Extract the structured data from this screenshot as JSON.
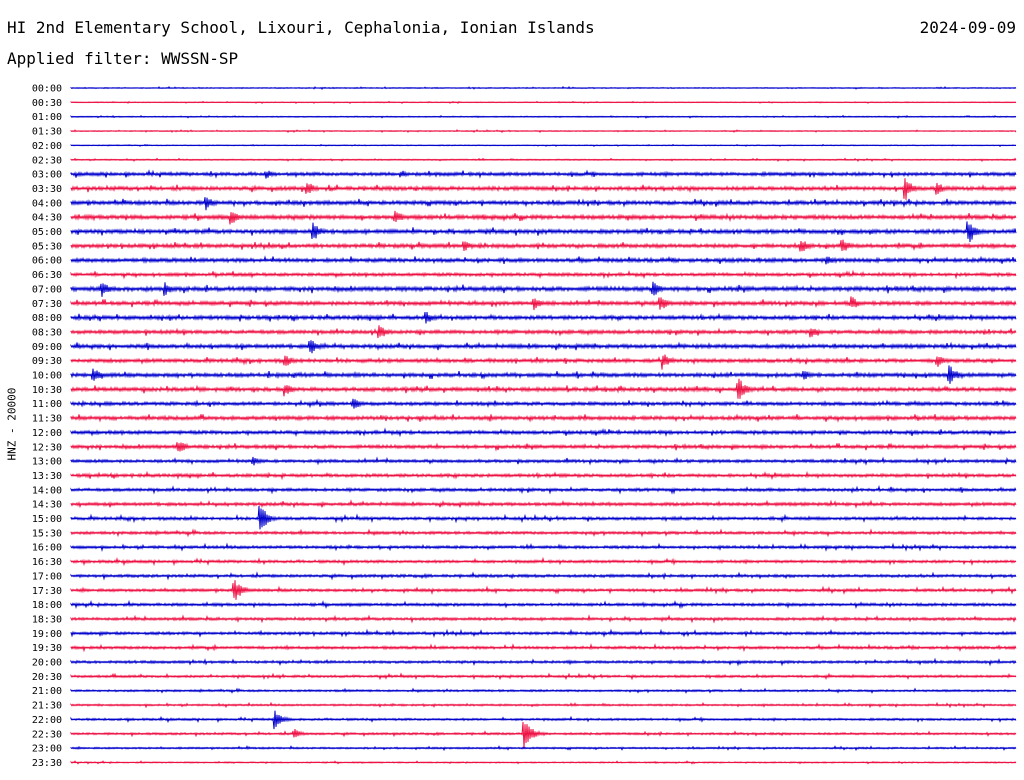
{
  "header": {
    "station": "HI 2nd Elementary School, Lixouri, Cephalonia, Ionian Islands",
    "date": "2024-09-09",
    "filter": "Applied filter: WWSSN-SP"
  },
  "colors": {
    "odd_trace": "#0000cc",
    "even_trace": "#ee1144"
  },
  "chart_data": {
    "type": "line",
    "title": "HI 2nd Elementary School, Lixouri, Cephalonia, Ionian Islands",
    "subtitle": "Applied filter: WWSSN-SP",
    "ylabel": "HNZ - 20000",
    "grid": false,
    "rows": [
      "00:00",
      "00:30",
      "01:00",
      "01:30",
      "02:00",
      "02:30",
      "03:00",
      "03:30",
      "04:00",
      "04:30",
      "05:00",
      "05:30",
      "06:00",
      "06:30",
      "07:00",
      "07:30",
      "08:00",
      "08:30",
      "09:00",
      "09:30",
      "10:00",
      "10:30",
      "11:00",
      "11:30",
      "12:00",
      "12:30",
      "13:00",
      "13:30",
      "14:00",
      "14:30",
      "15:00",
      "15:30",
      "16:00",
      "16:30",
      "17:00",
      "17:30",
      "18:00",
      "18:30",
      "19:00",
      "19:30",
      "20:00",
      "20:30",
      "21:00",
      "21:30",
      "22:00",
      "22:30",
      "23:00",
      "23:30"
    ],
    "trace_colors": [
      "#0000cc",
      "#ee1144"
    ],
    "noise_level": [
      0.5,
      0.4,
      0.5,
      0.5,
      0.4,
      0.6,
      1.6,
      1.8,
      1.8,
      1.9,
      1.9,
      1.8,
      1.8,
      1.5,
      2.0,
      1.8,
      1.8,
      1.7,
      1.8,
      1.7,
      1.8,
      1.8,
      1.6,
      1.8,
      1.6,
      1.6,
      1.4,
      1.5,
      1.4,
      1.5,
      1.4,
      1.3,
      1.3,
      1.3,
      1.3,
      1.3,
      1.3,
      1.3,
      1.3,
      1.3,
      1.2,
      1.1,
      0.9,
      0.9,
      1.0,
      1.0,
      0.8,
      0.6
    ],
    "events": [
      {
        "row": "03:00",
        "time_min": 6.2,
        "amp": 5
      },
      {
        "row": "03:00",
        "time_min": 10.5,
        "amp": 4
      },
      {
        "row": "03:30",
        "time_min": 7.5,
        "amp": 8
      },
      {
        "row": "03:30",
        "time_min": 26.5,
        "amp": 12
      },
      {
        "row": "03:30",
        "time_min": 27.5,
        "amp": 7
      },
      {
        "row": "04:00",
        "time_min": 4.3,
        "amp": 8
      },
      {
        "row": "04:30",
        "time_min": 5.1,
        "amp": 8
      },
      {
        "row": "04:30",
        "time_min": 10.3,
        "amp": 8
      },
      {
        "row": "05:00",
        "time_min": 7.7,
        "amp": 10
      },
      {
        "row": "05:00",
        "time_min": 28.5,
        "amp": 14
      },
      {
        "row": "05:30",
        "time_min": 12.5,
        "amp": 6
      },
      {
        "row": "05:30",
        "time_min": 23.2,
        "amp": 7
      },
      {
        "row": "05:30",
        "time_min": 24.5,
        "amp": 8
      },
      {
        "row": "06:00",
        "time_min": 24.0,
        "amp": 5
      },
      {
        "row": "07:00",
        "time_min": 1.0,
        "amp": 9
      },
      {
        "row": "07:00",
        "time_min": 3.0,
        "amp": 7
      },
      {
        "row": "07:00",
        "time_min": 18.5,
        "amp": 8
      },
      {
        "row": "07:30",
        "time_min": 14.7,
        "amp": 7
      },
      {
        "row": "07:30",
        "time_min": 18.7,
        "amp": 9
      },
      {
        "row": "07:30",
        "time_min": 24.8,
        "amp": 7
      },
      {
        "row": "08:00",
        "time_min": 11.3,
        "amp": 6
      },
      {
        "row": "08:30",
        "time_min": 9.8,
        "amp": 8
      },
      {
        "row": "08:30",
        "time_min": 23.5,
        "amp": 6
      },
      {
        "row": "09:00",
        "time_min": 7.6,
        "amp": 10
      },
      {
        "row": "09:30",
        "time_min": 6.8,
        "amp": 7
      },
      {
        "row": "09:30",
        "time_min": 18.8,
        "amp": 9
      },
      {
        "row": "09:30",
        "time_min": 27.5,
        "amp": 7
      },
      {
        "row": "10:00",
        "time_min": 0.7,
        "amp": 9
      },
      {
        "row": "10:00",
        "time_min": 23.3,
        "amp": 5
      },
      {
        "row": "10:00",
        "time_min": 27.9,
        "amp": 10
      },
      {
        "row": "10:30",
        "time_min": 6.8,
        "amp": 7
      },
      {
        "row": "10:30",
        "time_min": 21.2,
        "amp": 12
      },
      {
        "row": "11:00",
        "time_min": 9.0,
        "amp": 6
      },
      {
        "row": "12:30",
        "time_min": 3.4,
        "amp": 8
      },
      {
        "row": "13:00",
        "time_min": 5.8,
        "amp": 5
      },
      {
        "row": "15:00",
        "time_min": 6.0,
        "amp": 16
      },
      {
        "row": "17:30",
        "time_min": 5.2,
        "amp": 12
      },
      {
        "row": "22:00",
        "time_min": 6.5,
        "amp": 10
      },
      {
        "row": "22:30",
        "time_min": 14.4,
        "amp": 16
      },
      {
        "row": "22:30",
        "time_min": 7.1,
        "amp": 5
      }
    ]
  }
}
